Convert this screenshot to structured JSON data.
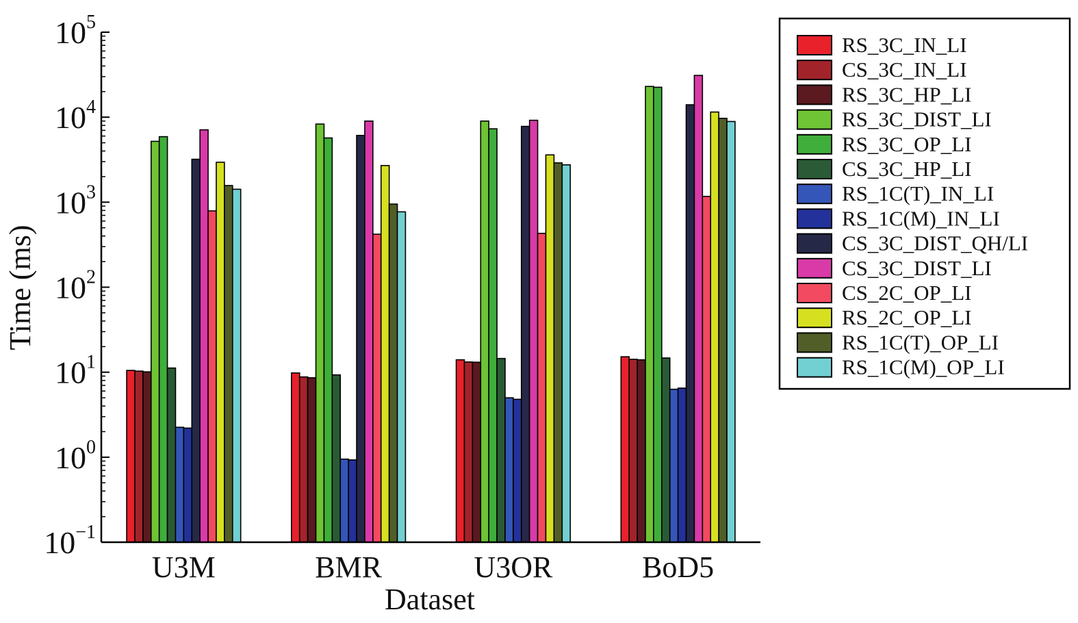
{
  "chart_data": {
    "type": "bar",
    "xlabel": "Dataset",
    "ylabel": "Time (ms)",
    "yscale": "log",
    "ylim": [
      0.1,
      100000
    ],
    "y_ticks": [
      {
        "value": 0.1,
        "base": "10",
        "exp": "−1"
      },
      {
        "value": 1,
        "base": "10",
        "exp": "0"
      },
      {
        "value": 10,
        "base": "10",
        "exp": "1"
      },
      {
        "value": 100,
        "base": "10",
        "exp": "2"
      },
      {
        "value": 1000,
        "base": "10",
        "exp": "3"
      },
      {
        "value": 10000,
        "base": "10",
        "exp": "4"
      },
      {
        "value": 100000,
        "base": "10",
        "exp": "5"
      }
    ],
    "categories": [
      "U3M",
      "BMR",
      "U3OR",
      "BoD5"
    ],
    "legend_position": "right",
    "grid": false,
    "series": [
      {
        "name": "RS_3C_IN_LI",
        "color": "#e8212b",
        "values": [
          10.5,
          9.8,
          14.0,
          15.2
        ]
      },
      {
        "name": "CS_3C_IN_LI",
        "color": "#a3232a",
        "values": [
          10.3,
          8.8,
          13.2,
          14.2
        ]
      },
      {
        "name": "RS_3C_HP_LI",
        "color": "#5a1a1f",
        "values": [
          10.1,
          8.6,
          13.1,
          14.0
        ]
      },
      {
        "name": "RS_3C_DIST_LI",
        "color": "#6ec434",
        "values": [
          5200,
          8300,
          9000,
          23000
        ]
      },
      {
        "name": "RS_3C_OP_LI",
        "color": "#3fae3a",
        "values": [
          5900,
          5700,
          7300,
          22500
        ]
      },
      {
        "name": "CS_3C_HP_LI",
        "color": "#2a5a36",
        "values": [
          11.2,
          9.3,
          14.5,
          14.7
        ]
      },
      {
        "name": "RS_1C(T)_IN_LI",
        "color": "#3456b8",
        "values": [
          2.25,
          0.95,
          5.0,
          6.3
        ]
      },
      {
        "name": "RS_1C(M)_IN_LI",
        "color": "#23319a",
        "values": [
          2.2,
          0.93,
          4.8,
          6.5
        ]
      },
      {
        "name": "CS_3C_DIST_QH/LI",
        "color": "#262848",
        "values": [
          3200,
          6100,
          7800,
          14000
        ]
      },
      {
        "name": "CS_3C_DIST_LI",
        "color": "#d93aa8",
        "values": [
          7100,
          9000,
          9200,
          31000
        ]
      },
      {
        "name": "CS_2C_OP_LI",
        "color": "#f24a60",
        "values": [
          790,
          420,
          430,
          1170
        ]
      },
      {
        "name": "RS_2C_OP_LI",
        "color": "#d6e021",
        "values": [
          2950,
          2700,
          3600,
          11500
        ]
      },
      {
        "name": "RS_1C(T)_OP_LI",
        "color": "#525e28",
        "values": [
          1570,
          950,
          2900,
          9700
        ]
      },
      {
        "name": "RS_1C(M)_OP_LI",
        "color": "#72d0d2",
        "values": [
          1420,
          770,
          2750,
          8900
        ]
      }
    ]
  }
}
